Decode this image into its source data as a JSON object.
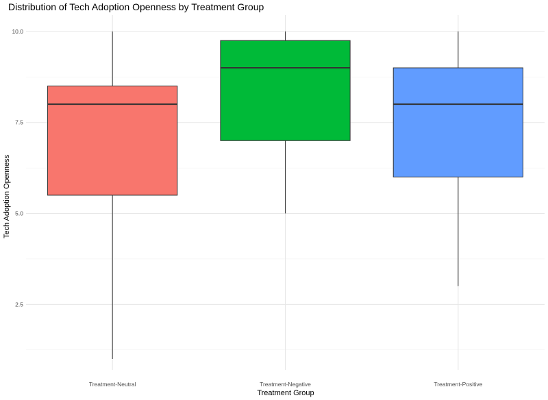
{
  "chart_data": {
    "type": "box",
    "title": "Distribution of Tech Adoption Openness by Treatment Group",
    "xlabel": "Treatment Group",
    "ylabel": "Tech Adoption Openness",
    "ylim": [
      0.7,
      10.45
    ],
    "yticks": [
      2.5,
      5.0,
      7.5,
      10.0
    ],
    "ytick_labels": [
      "2.5",
      "5.0",
      "7.5",
      "10.0"
    ],
    "grid": true,
    "legend": "none",
    "categories": [
      "Treatment-Neutral",
      "Treatment-Negative",
      "Treatment-Positive"
    ],
    "boxes": [
      {
        "category": "Treatment-Neutral",
        "min": 1.0,
        "q1": 5.5,
        "median": 8.0,
        "q3": 8.5,
        "max": 10.0,
        "color": "#F8766D"
      },
      {
        "category": "Treatment-Negative",
        "min": 5.0,
        "q1": 7.0,
        "median": 9.0,
        "q3": 9.75,
        "max": 10.0,
        "color": "#00BA38"
      },
      {
        "category": "Treatment-Positive",
        "min": 3.0,
        "q1": 6.0,
        "median": 8.0,
        "q3": 9.0,
        "max": 10.0,
        "color": "#619CFF"
      }
    ]
  }
}
